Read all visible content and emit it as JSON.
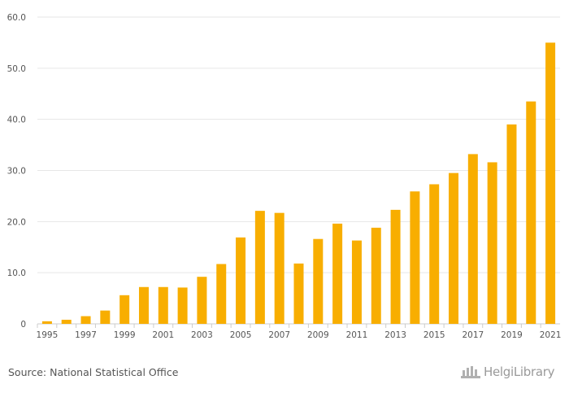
{
  "chart_data": {
    "type": "bar",
    "categories": [
      "1995",
      "1996",
      "1997",
      "1998",
      "1999",
      "2000",
      "2001",
      "2002",
      "2003",
      "2004",
      "2005",
      "2006",
      "2007",
      "2008",
      "2009",
      "2010",
      "2011",
      "2012",
      "2013",
      "2014",
      "2015",
      "2016",
      "2017",
      "2018",
      "2019",
      "2020",
      "2021"
    ],
    "x_tick_labels": [
      "1995",
      "1997",
      "1999",
      "2001",
      "2003",
      "2005",
      "2007",
      "2009",
      "2011",
      "2013",
      "2015",
      "2017",
      "2019",
      "2021"
    ],
    "values": [
      0.5,
      0.8,
      1.5,
      2.6,
      5.6,
      7.2,
      7.2,
      7.1,
      9.2,
      11.7,
      16.9,
      22.1,
      21.7,
      11.8,
      16.6,
      19.6,
      16.3,
      18.8,
      22.3,
      25.9,
      27.3,
      29.5,
      33.2,
      31.6,
      39.0,
      43.5,
      55.0
    ],
    "ylim": [
      0,
      60
    ],
    "y_ticks": [
      "0",
      "10.0",
      "20.0",
      "30.0",
      "40.0",
      "50.0",
      "60.0"
    ],
    "title": "",
    "xlabel": "",
    "ylabel": "",
    "bar_color": "#f8ae00",
    "grid": true
  },
  "footer": {
    "source": "Source: National Statistical Office",
    "brand": "HelgiLibrary"
  },
  "colors": {
    "grid": "#e6e6e6",
    "axis_text": "#555555",
    "brand": "#9a9a9a"
  }
}
